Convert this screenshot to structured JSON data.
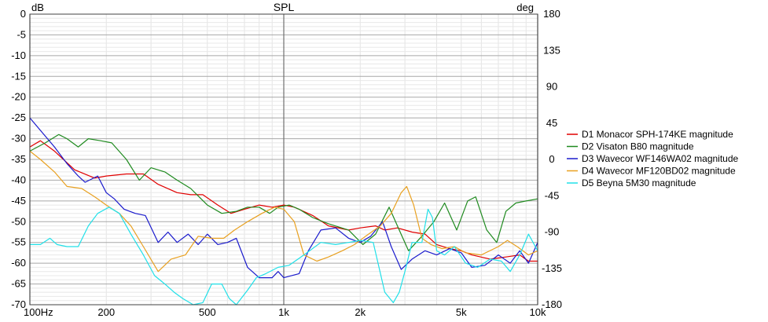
{
  "chart_data": {
    "type": "line",
    "title": "SPL",
    "left_unit": "dB",
    "right_unit": "deg",
    "x_scale": "log",
    "xlim": [
      100,
      10000
    ],
    "ylim": [
      -70,
      0
    ],
    "y2lim": [
      -180,
      180
    ],
    "grid": true,
    "legend_position": "right",
    "x_ticks": [
      {
        "value": 100,
        "label": "100Hz"
      },
      {
        "value": 200,
        "label": "200"
      },
      {
        "value": 500,
        "label": "500"
      },
      {
        "value": 1000,
        "label": "1k"
      },
      {
        "value": 2000,
        "label": "2k"
      },
      {
        "value": 5000,
        "label": "5k"
      },
      {
        "value": 10000,
        "label": "10k"
      }
    ],
    "y_ticks": [
      {
        "value": 0,
        "label": "0"
      },
      {
        "value": -5,
        "label": "-5"
      },
      {
        "value": -10,
        "label": "-10"
      },
      {
        "value": -15,
        "label": "-15"
      },
      {
        "value": -20,
        "label": "-20"
      },
      {
        "value": -25,
        "label": "-25"
      },
      {
        "value": -30,
        "label": "-30"
      },
      {
        "value": -35,
        "label": "-35"
      },
      {
        "value": -40,
        "label": "-40"
      },
      {
        "value": -45,
        "label": "-45"
      },
      {
        "value": -50,
        "label": "-50"
      },
      {
        "value": -55,
        "label": "-55"
      },
      {
        "value": -60,
        "label": "-60"
      },
      {
        "value": -65,
        "label": "-65"
      },
      {
        "value": -70,
        "label": "-70"
      }
    ],
    "y2_ticks": [
      {
        "value": 180,
        "label": "180"
      },
      {
        "value": 135,
        "label": "135"
      },
      {
        "value": 90,
        "label": "90"
      },
      {
        "value": 45,
        "label": "45"
      },
      {
        "value": 0,
        "label": "0"
      },
      {
        "value": -45,
        "label": "-45"
      },
      {
        "value": -90,
        "label": "-90"
      },
      {
        "value": -135,
        "label": "-135"
      },
      {
        "value": -180,
        "label": "-180"
      }
    ],
    "series": [
      {
        "name": "D1 Monacor SPH-174KE magnitude",
        "color": "#e00000",
        "points": [
          [
            100,
            -32
          ],
          [
            110,
            -30.5
          ],
          [
            125,
            -33
          ],
          [
            150,
            -37.5
          ],
          [
            180,
            -39.5
          ],
          [
            200,
            -39
          ],
          [
            240,
            -38.5
          ],
          [
            280,
            -38.5
          ],
          [
            320,
            -41
          ],
          [
            380,
            -43
          ],
          [
            430,
            -43.5
          ],
          [
            480,
            -43.5
          ],
          [
            550,
            -46
          ],
          [
            620,
            -48
          ],
          [
            700,
            -47
          ],
          [
            800,
            -46
          ],
          [
            900,
            -46.5
          ],
          [
            1000,
            -46
          ],
          [
            1100,
            -46.5
          ],
          [
            1300,
            -48.5
          ],
          [
            1500,
            -51
          ],
          [
            1800,
            -52
          ],
          [
            2000,
            -51.5
          ],
          [
            2300,
            -51
          ],
          [
            2500,
            -52
          ],
          [
            2800,
            -51.5
          ],
          [
            3200,
            -52.5
          ],
          [
            3600,
            -53
          ],
          [
            4000,
            -55.5
          ],
          [
            4500,
            -56.5
          ],
          [
            5000,
            -57
          ],
          [
            5500,
            -58
          ],
          [
            6500,
            -59
          ],
          [
            7500,
            -58.5
          ],
          [
            8500,
            -58
          ],
          [
            9200,
            -59.5
          ],
          [
            10000,
            -59.5
          ]
        ]
      },
      {
        "name": "D2 Visaton B80 magnitude",
        "color": "#1f8a1f",
        "points": [
          [
            100,
            -33
          ],
          [
            115,
            -31
          ],
          [
            130,
            -29
          ],
          [
            140,
            -30
          ],
          [
            155,
            -32
          ],
          [
            170,
            -30
          ],
          [
            190,
            -30.5
          ],
          [
            210,
            -31
          ],
          [
            240,
            -35
          ],
          [
            270,
            -40
          ],
          [
            300,
            -37
          ],
          [
            340,
            -38
          ],
          [
            380,
            -40
          ],
          [
            430,
            -42
          ],
          [
            500,
            -46
          ],
          [
            570,
            -48
          ],
          [
            650,
            -47.5
          ],
          [
            720,
            -46.5
          ],
          [
            800,
            -46.5
          ],
          [
            880,
            -48
          ],
          [
            950,
            -46.5
          ],
          [
            1050,
            -46
          ],
          [
            1150,
            -47
          ],
          [
            1300,
            -49
          ],
          [
            1500,
            -50.5
          ],
          [
            1800,
            -52
          ],
          [
            2050,
            -55.5
          ],
          [
            2300,
            -53
          ],
          [
            2600,
            -46.5
          ],
          [
            2850,
            -52
          ],
          [
            3100,
            -57
          ],
          [
            3500,
            -53.5
          ],
          [
            3900,
            -50
          ],
          [
            4300,
            -45.5
          ],
          [
            4800,
            -52
          ],
          [
            5300,
            -45
          ],
          [
            5700,
            -44
          ],
          [
            6300,
            -52
          ],
          [
            6900,
            -55
          ],
          [
            7500,
            -47.5
          ],
          [
            8200,
            -45.5
          ],
          [
            9000,
            -45
          ],
          [
            10000,
            -44.5
          ]
        ]
      },
      {
        "name": "D3 Wavecor WF146WA02 magnitude",
        "color": "#1a1acc",
        "points": [
          [
            100,
            -25
          ],
          [
            110,
            -28
          ],
          [
            125,
            -32
          ],
          [
            140,
            -36
          ],
          [
            155,
            -39
          ],
          [
            165,
            -40.5
          ],
          [
            185,
            -39
          ],
          [
            200,
            -43
          ],
          [
            215,
            -44.5
          ],
          [
            235,
            -47
          ],
          [
            260,
            -48
          ],
          [
            285,
            -48.5
          ],
          [
            320,
            -55
          ],
          [
            350,
            -52.5
          ],
          [
            380,
            -55
          ],
          [
            420,
            -53
          ],
          [
            460,
            -55.5
          ],
          [
            500,
            -53
          ],
          [
            550,
            -55.5
          ],
          [
            600,
            -55
          ],
          [
            650,
            -54
          ],
          [
            720,
            -61
          ],
          [
            800,
            -63.5
          ],
          [
            900,
            -63.5
          ],
          [
            950,
            -62
          ],
          [
            1000,
            -63.5
          ],
          [
            1150,
            -62.5
          ],
          [
            1250,
            -57
          ],
          [
            1400,
            -52
          ],
          [
            1600,
            -51.5
          ],
          [
            1800,
            -54
          ],
          [
            2000,
            -55
          ],
          [
            2200,
            -53.5
          ],
          [
            2450,
            -50
          ],
          [
            2650,
            -56
          ],
          [
            2900,
            -61.5
          ],
          [
            3200,
            -59
          ],
          [
            3600,
            -57
          ],
          [
            4000,
            -58
          ],
          [
            4500,
            -56.5
          ],
          [
            5000,
            -57.5
          ],
          [
            5500,
            -61
          ],
          [
            6200,
            -60.5
          ],
          [
            7000,
            -58
          ],
          [
            7800,
            -60
          ],
          [
            8500,
            -57
          ],
          [
            9200,
            -60
          ],
          [
            10000,
            -55
          ]
        ]
      },
      {
        "name": "D4 Wavecor MF120BD02 magnitude",
        "color": "#e8a020",
        "points": [
          [
            100,
            -33
          ],
          [
            110,
            -35
          ],
          [
            125,
            -38
          ],
          [
            140,
            -41.5
          ],
          [
            160,
            -42
          ],
          [
            180,
            -44
          ],
          [
            200,
            -46
          ],
          [
            225,
            -48
          ],
          [
            250,
            -51
          ],
          [
            280,
            -56
          ],
          [
            320,
            -62
          ],
          [
            360,
            -59
          ],
          [
            410,
            -58
          ],
          [
            460,
            -53.5
          ],
          [
            520,
            -54
          ],
          [
            580,
            -54
          ],
          [
            640,
            -52
          ],
          [
            720,
            -50
          ],
          [
            820,
            -48
          ],
          [
            920,
            -46.5
          ],
          [
            1000,
            -47
          ],
          [
            1100,
            -50
          ],
          [
            1200,
            -58
          ],
          [
            1350,
            -59.5
          ],
          [
            1500,
            -58.5
          ],
          [
            1700,
            -57
          ],
          [
            1900,
            -55.5
          ],
          [
            2100,
            -53.5
          ],
          [
            2400,
            -51
          ],
          [
            2650,
            -48
          ],
          [
            2900,
            -43
          ],
          [
            3050,
            -41.5
          ],
          [
            3250,
            -46
          ],
          [
            3500,
            -54
          ],
          [
            3800,
            -55.5
          ],
          [
            4200,
            -56.5
          ],
          [
            4700,
            -56
          ],
          [
            5200,
            -57.5
          ],
          [
            6000,
            -58
          ],
          [
            7000,
            -56
          ],
          [
            7600,
            -54.5
          ],
          [
            8300,
            -56
          ],
          [
            9200,
            -58
          ],
          [
            10000,
            -57
          ]
        ]
      },
      {
        "name": "D5 Beyna 5M30 magnitude",
        "color": "#20e0e8",
        "points": [
          [
            100,
            -55.5
          ],
          [
            110,
            -55.5
          ],
          [
            120,
            -54
          ],
          [
            128,
            -55.5
          ],
          [
            140,
            -56
          ],
          [
            155,
            -56
          ],
          [
            170,
            -51
          ],
          [
            185,
            -48
          ],
          [
            205,
            -46.5
          ],
          [
            225,
            -48
          ],
          [
            250,
            -53
          ],
          [
            280,
            -58
          ],
          [
            310,
            -63
          ],
          [
            340,
            -65
          ],
          [
            370,
            -67
          ],
          [
            400,
            -68.5
          ],
          [
            440,
            -70
          ],
          [
            480,
            -69.5
          ],
          [
            520,
            -65
          ],
          [
            570,
            -65
          ],
          [
            610,
            -68.5
          ],
          [
            650,
            -70
          ],
          [
            720,
            -66.5
          ],
          [
            780,
            -63.5
          ],
          [
            850,
            -62.5
          ],
          [
            950,
            -61
          ],
          [
            1050,
            -60.5
          ],
          [
            1200,
            -58
          ],
          [
            1400,
            -55
          ],
          [
            1600,
            -55.5
          ],
          [
            1800,
            -55
          ],
          [
            2000,
            -54.5
          ],
          [
            2250,
            -55
          ],
          [
            2500,
            -67
          ],
          [
            2700,
            -69.5
          ],
          [
            2850,
            -67
          ],
          [
            3000,
            -62
          ],
          [
            3200,
            -55
          ],
          [
            3500,
            -55
          ],
          [
            3700,
            -47
          ],
          [
            3850,
            -49
          ],
          [
            4000,
            -57
          ],
          [
            4300,
            -58
          ],
          [
            4700,
            -56
          ],
          [
            5200,
            -60
          ],
          [
            5800,
            -61
          ],
          [
            6500,
            -59
          ],
          [
            7200,
            -59.5
          ],
          [
            7800,
            -62
          ],
          [
            8500,
            -58
          ],
          [
            9200,
            -53
          ],
          [
            10000,
            -57
          ]
        ]
      }
    ]
  }
}
